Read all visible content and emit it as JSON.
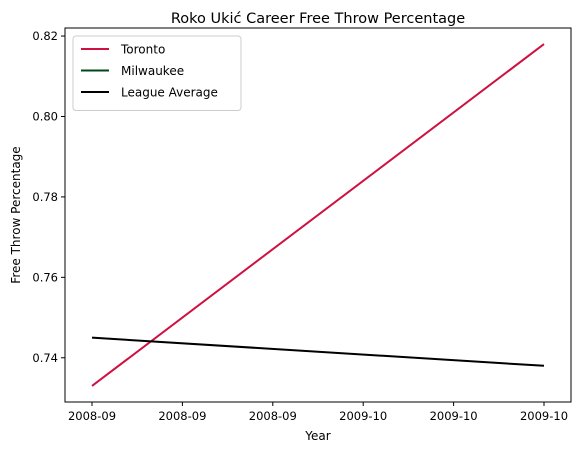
{
  "chart_data": {
    "type": "line",
    "title": "Roko Ukić Career Free Throw Percentage",
    "xlabel": "Year",
    "ylabel": "Free Throw Percentage",
    "x_tick_labels": [
      "2008-09",
      "2008-09",
      "2008-09",
      "2009-10",
      "2009-10",
      "2009-10"
    ],
    "x_range": [
      0,
      1
    ],
    "ylim": [
      0.729,
      0.822
    ],
    "y_ticks": [
      0.74,
      0.76,
      0.78,
      0.8,
      0.82
    ],
    "y_tick_labels": [
      "0.74",
      "0.76",
      "0.78",
      "0.80",
      "0.82"
    ],
    "grid": false,
    "legend_position": "top-left",
    "series": [
      {
        "name": "Toronto",
        "color": "#ce1141",
        "x": [
          0,
          1
        ],
        "y": [
          0.733,
          0.818
        ]
      },
      {
        "name": "Milwaukee",
        "color": "#00471b",
        "x": [],
        "y": []
      },
      {
        "name": "League Average",
        "color": "#000000",
        "x": [
          0,
          1
        ],
        "y": [
          0.745,
          0.738
        ]
      }
    ]
  }
}
